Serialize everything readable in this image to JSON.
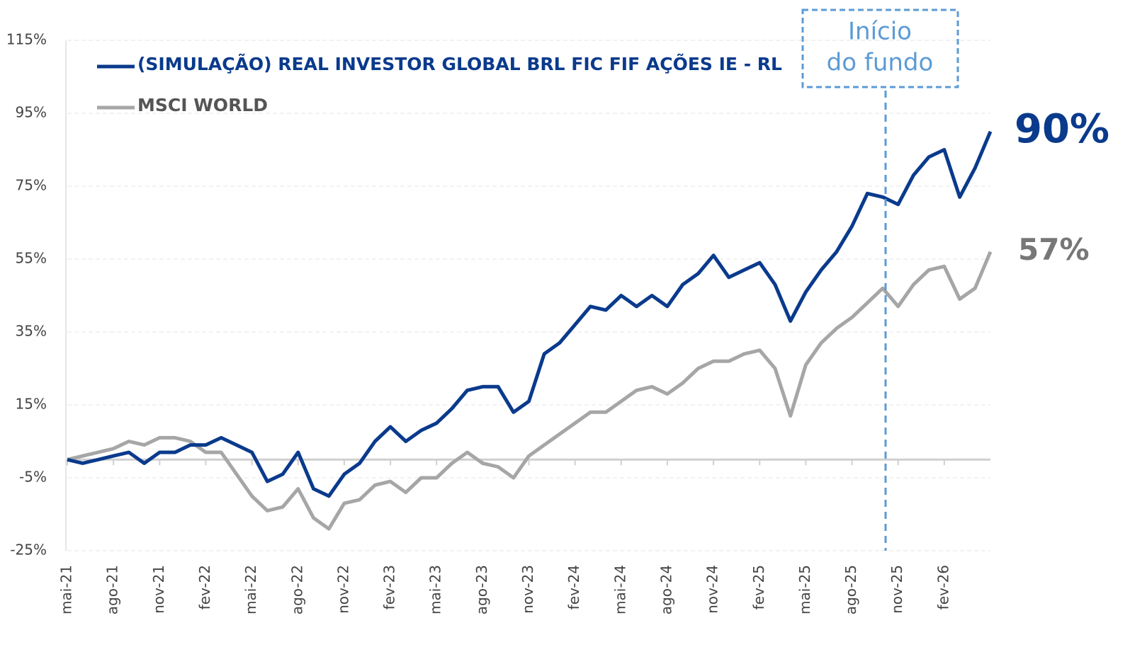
{
  "chart_data": {
    "type": "line",
    "categories": [
      "mai-21",
      null,
      null,
      "ago-21",
      null,
      null,
      "nov-21",
      null,
      null,
      "fev-22",
      null,
      null,
      "mai-22",
      null,
      null,
      "ago-22",
      null,
      null,
      "nov-22",
      null,
      null,
      "fev-23",
      null,
      null,
      "mai-23",
      null,
      null,
      "ago-23",
      null,
      null,
      "nov-23",
      null,
      null,
      "fev-24",
      null,
      null,
      "mai-24",
      null,
      null,
      "ago-24",
      null,
      null,
      "nov-24",
      null,
      null,
      "fev-25",
      null,
      null,
      "mai-25",
      null,
      null,
      "ago-25",
      null,
      null,
      "nov-25",
      null,
      null,
      "fev-26",
      null,
      null,
      null
    ],
    "series": [
      {
        "name": "(SIMULAÇÃO) REAL INVESTOR GLOBAL BRL FIC FIF AÇÕES IE - RL",
        "color": "#0a3a8c",
        "end_label": "90%",
        "values": [
          0,
          -1,
          0,
          1,
          2,
          -1,
          2,
          2,
          4,
          4,
          6,
          4,
          2,
          -6,
          -4,
          2,
          -8,
          -10,
          -4,
          -1,
          5,
          9,
          5,
          8,
          10,
          14,
          19,
          20,
          20,
          13,
          16,
          29,
          32,
          37,
          42,
          41,
          45,
          42,
          45,
          42,
          48,
          51,
          56,
          50,
          52,
          54,
          48,
          38,
          46,
          52,
          57,
          64,
          73,
          72,
          70,
          78,
          83,
          85,
          72,
          80,
          90
        ]
      },
      {
        "name": "MSCI WORLD",
        "color": "#a6a6a6",
        "end_label": "57%",
        "values": [
          0,
          1,
          2,
          3,
          5,
          4,
          6,
          6,
          5,
          2,
          2,
          -4,
          -10,
          -14,
          -13,
          -8,
          -16,
          -19,
          -12,
          -11,
          -7,
          -6,
          -9,
          -5,
          -5,
          -1,
          2,
          -1,
          -2,
          -5,
          1,
          4,
          7,
          10,
          13,
          13,
          16,
          19,
          20,
          18,
          21,
          25,
          27,
          27,
          29,
          30,
          25,
          12,
          26,
          32,
          36,
          39,
          43,
          47,
          42,
          48,
          52,
          53,
          44,
          47,
          57
        ]
      }
    ],
    "annotation": [
      "Início",
      "do fundo"
    ],
    "ylim": [
      -25,
      115
    ],
    "yticks": [
      {
        "value": -25,
        "label": "-25%"
      },
      {
        "value": -5,
        "label": "-5%"
      },
      {
        "value": 15,
        "label": "15%"
      },
      {
        "value": 35,
        "label": "35%"
      },
      {
        "value": 55,
        "label": "55%"
      },
      {
        "value": 75,
        "label": "75%"
      },
      {
        "value": 95,
        "label": "95%"
      },
      {
        "value": 115,
        "label": "115%"
      }
    ],
    "grid": true,
    "legend": "top-left"
  }
}
